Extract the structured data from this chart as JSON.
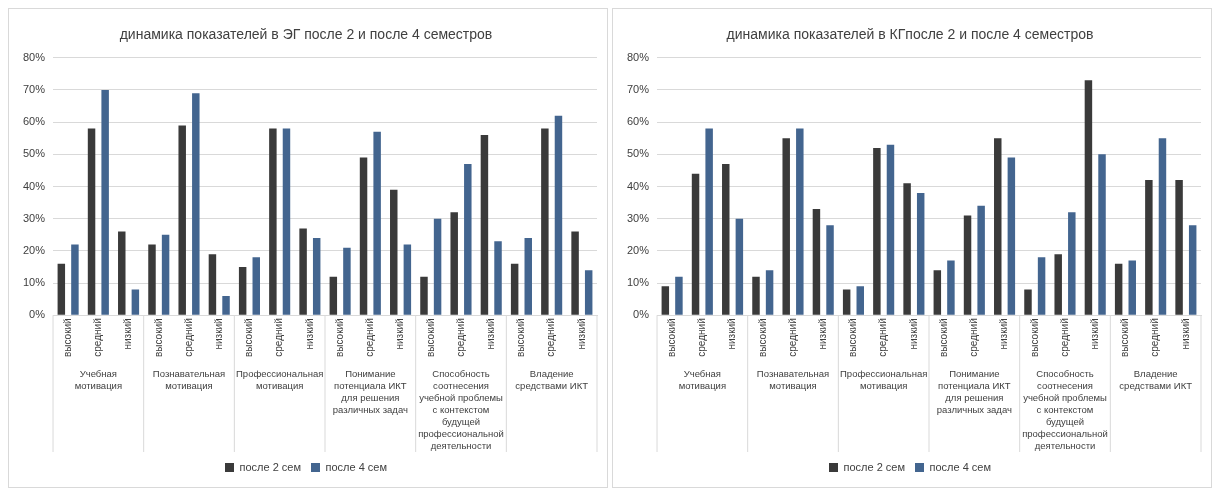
{
  "chart_data": [
    {
      "type": "bar",
      "title": "динамика показателей в ЭГ после 2 и после 4 семестров",
      "categories": [
        "высокий",
        "средний",
        "низкий",
        "высокий",
        "средний",
        "низкий",
        "высокий",
        "средний",
        "низкий",
        "высокий",
        "средний",
        "низкий",
        "высокий",
        "средний",
        "низкий",
        "высокий",
        "средний",
        "низкий"
      ],
      "series": [
        {
          "name": "после 2 сем",
          "color": "#3a3a3a",
          "values": [
            16,
            58,
            26,
            22,
            59,
            19,
            15,
            58,
            27,
            12,
            49,
            39,
            12,
            32,
            56,
            16,
            58,
            26
          ]
        },
        {
          "name": "после 4 сем",
          "color": "#43658f",
          "values": [
            22,
            70,
            8,
            25,
            69,
            6,
            18,
            58,
            24,
            21,
            57,
            22,
            30,
            47,
            23,
            24,
            62,
            14
          ]
        }
      ],
      "annotations": [
        "Учебная мотивация",
        "Познавательная мотивация",
        "Профессиональная мотивация",
        "Понимание потенциала ИКТ для решения различных задач",
        "Способность соотнесения учебной проблемы с контекстом будущей профессиональной деятельности",
        "Владение средствами ИКТ"
      ],
      "ylim": [
        0,
        80
      ],
      "yticks": [
        {
          "value": 0,
          "label": "0%"
        },
        {
          "value": 10,
          "label": "10%"
        },
        {
          "value": 20,
          "label": "20%"
        },
        {
          "value": 30,
          "label": "30%"
        },
        {
          "value": 40,
          "label": "40%"
        },
        {
          "value": 50,
          "label": "50%"
        },
        {
          "value": 60,
          "label": "60%"
        },
        {
          "value": 70,
          "label": "70%"
        },
        {
          "value": 80,
          "label": "80%"
        }
      ],
      "grid": "y",
      "legend": "bottom"
    },
    {
      "type": "bar",
      "title": "динамика показателей в КГпосле 2 и после 4 семестров",
      "categories": [
        "высокий",
        "средний",
        "низкий",
        "высокий",
        "средний",
        "низкий",
        "высокий",
        "средний",
        "низкий",
        "высокий",
        "средний",
        "низкий",
        "высокий",
        "средний",
        "низкий",
        "высокий",
        "средний",
        "низкий"
      ],
      "series": [
        {
          "name": "после 2 сем",
          "color": "#3a3a3a",
          "values": [
            9,
            44,
            47,
            12,
            55,
            33,
            8,
            52,
            41,
            14,
            31,
            55,
            8,
            19,
            73,
            16,
            42,
            42
          ]
        },
        {
          "name": "после 4 сем",
          "color": "#43658f",
          "values": [
            12,
            58,
            30,
            14,
            58,
            28,
            9,
            53,
            38,
            17,
            34,
            49,
            18,
            32,
            50,
            17,
            55,
            28
          ]
        }
      ],
      "annotations": [
        "Учебная мотивация",
        "Познавательная мотивация",
        "Профессиональная мотивация",
        "Понимание потенциала ИКТ для решения различных задач",
        "Способность соотнесения учебной проблемы с контекстом будущей профессиональной деятельности",
        "Владение средствами ИКТ"
      ],
      "ylim": [
        0,
        80
      ],
      "yticks": [
        {
          "value": 0,
          "label": "0%"
        },
        {
          "value": 10,
          "label": "10%"
        },
        {
          "value": 20,
          "label": "20%"
        },
        {
          "value": 30,
          "label": "30%"
        },
        {
          "value": 40,
          "label": "40%"
        },
        {
          "value": 50,
          "label": "50%"
        },
        {
          "value": 60,
          "label": "60%"
        },
        {
          "value": 70,
          "label": "70%"
        },
        {
          "value": 80,
          "label": "80%"
        }
      ],
      "grid": "y",
      "legend": "bottom"
    }
  ]
}
